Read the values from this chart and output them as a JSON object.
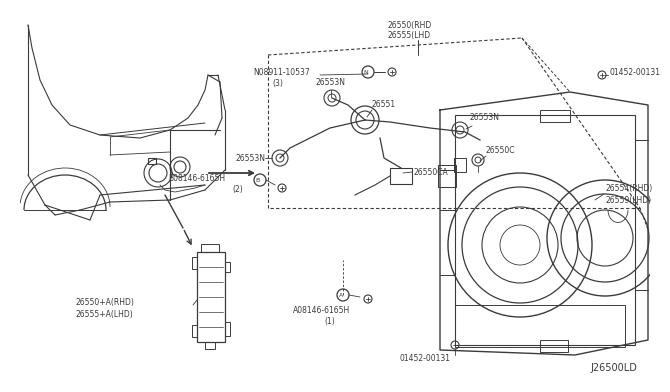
{
  "bg_color": "#ffffff",
  "line_color": "#3a3a3a",
  "diagram_id": "J26500LD",
  "labels": {
    "part_26550_rhd": "26550(RHD",
    "part_26555_lhd": "26555(LHD",
    "part_n08911": "N08911-10537",
    "part_n08911_qty": "(3)",
    "part_b08146": "B08146-6165H",
    "part_b08146_qty": "(2)",
    "part_26553N_a": "26553N",
    "part_26551": "26551",
    "part_26553N_b": "26553N",
    "part_26550c": "26550C",
    "part_26550ca": "26550CA",
    "part_26554_rhd": "26554(RHD)",
    "part_26559_lhd": "26559(LHD)",
    "part_01452_top": "01452-00131",
    "part_26550a_rhd": "26550+A(RHD)",
    "part_26555a_lhd": "26555+A(LHD)",
    "part_a08146": "A08146-6165H",
    "part_a08146_qty": "(1)",
    "part_01452_bot": "01452-00131",
    "diagram_id": "J26500LD"
  }
}
